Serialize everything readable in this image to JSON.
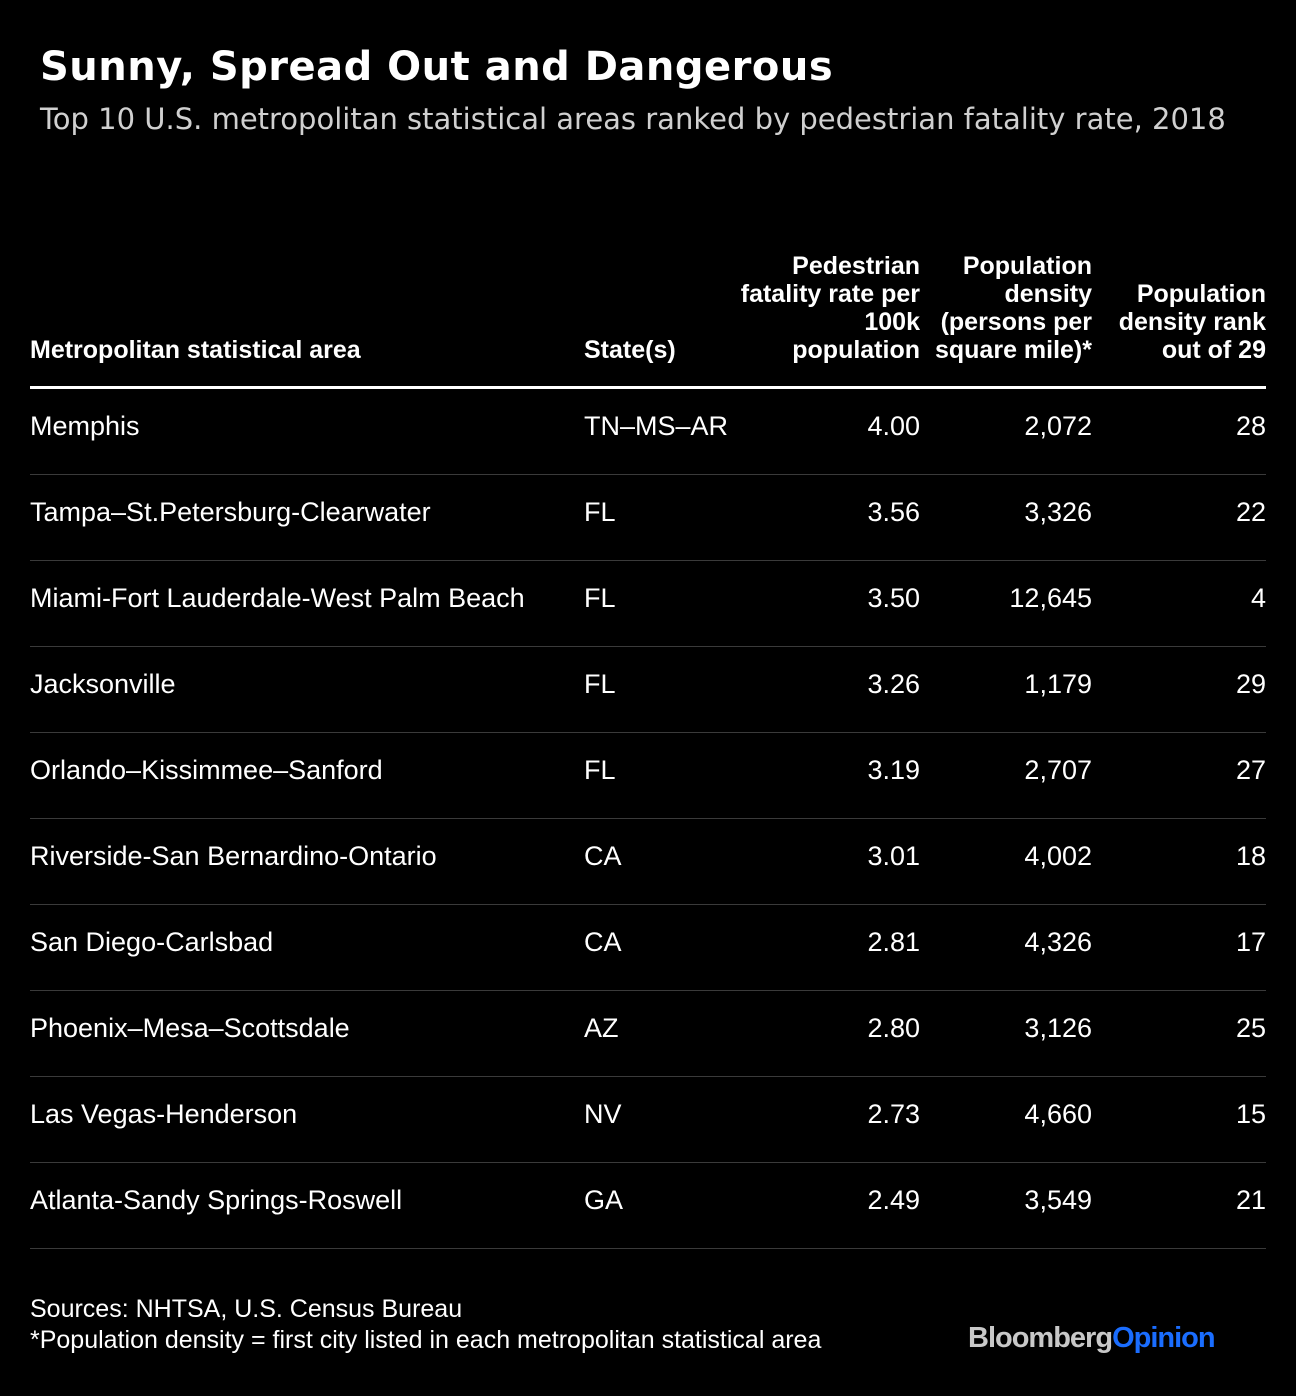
{
  "chart_data": {
    "type": "table",
    "title": "Sunny, Spread Out and Dangerous",
    "subtitle": "Top 10 U.S. metropolitan statistical areas ranked by pedestrian fatality rate, 2018",
    "columns": [
      "Metropolitan statistical area",
      "State(s)",
      "Pedestrian fatality rate per 100k population",
      "Population density (persons per square mile)*",
      "Population density rank out of 29"
    ],
    "rows": [
      [
        "Memphis",
        "TN–MS–AR",
        "4.00",
        "2,072",
        "28"
      ],
      [
        "Tampa–St.Petersburg-Clearwater",
        "FL",
        "3.56",
        "3,326",
        "22"
      ],
      [
        "Miami-Fort Lauderdale-West Palm Beach",
        "FL",
        "3.50",
        "12,645",
        "4"
      ],
      [
        "Jacksonville",
        "FL",
        "3.26",
        "1,179",
        "29"
      ],
      [
        "Orlando–Kissimmee–Sanford",
        "FL",
        "3.19",
        "2,707",
        "27"
      ],
      [
        "Riverside-San Bernardino-Ontario",
        "CA",
        "3.01",
        "4,002",
        "18"
      ],
      [
        "San Diego-Carlsbad",
        "CA",
        "2.81",
        "4,326",
        "17"
      ],
      [
        "Phoenix–Mesa–Scottsdale",
        "AZ",
        "2.80",
        "3,126",
        "25"
      ],
      [
        "Las Vegas-Henderson",
        "NV",
        "2.73",
        "4,660",
        "15"
      ],
      [
        "Atlanta-Sandy Springs-Roswell",
        "GA",
        "2.49",
        "3,549",
        "21"
      ]
    ],
    "source": "Sources: NHTSA, U.S. Census Bureau",
    "note": "*Population density = first city listed in each metropolitan statistical area"
  },
  "brand": {
    "part1": "Bloomberg",
    "part2": "Opinion",
    "part1_color": "#c8c8c8",
    "part2_color": "#1a6dff"
  },
  "colors": {
    "background": "#000000",
    "text": "#ffffff",
    "subtitle": "#d0d0d0",
    "rule": "#3a3a3a"
  }
}
